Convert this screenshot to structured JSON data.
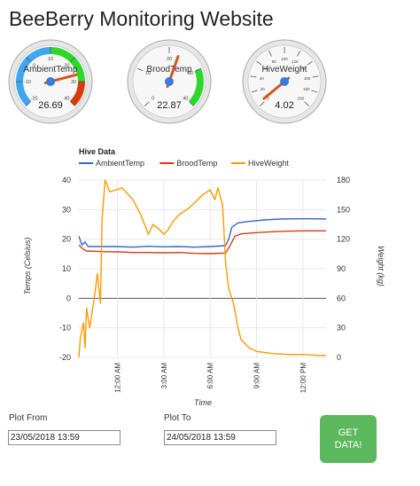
{
  "page": {
    "title": "BeeBerry Monitoring Website"
  },
  "gauges": [
    {
      "label": "AmbientTemp",
      "value": "26.69",
      "value_num": 26.69,
      "min": -20,
      "max": 40,
      "ticks": [
        "-20",
        "-10",
        "0",
        "10",
        "20",
        "30",
        "40"
      ],
      "bands": [
        {
          "from": -20,
          "to": 10,
          "color": "#3ea6f0"
        },
        {
          "from": 10,
          "to": 30,
          "color": "#2bd82b"
        },
        {
          "from": 30,
          "to": 40,
          "color": "#d73b0e"
        }
      ]
    },
    {
      "label": "BroodTemp",
      "value": "22.87",
      "value_num": 22.87,
      "min": 0,
      "max": 40,
      "ticks": [
        "0",
        "10",
        "20",
        "30",
        "40"
      ],
      "bands": [
        {
          "from": 30,
          "to": 40,
          "color": "#2bd82b"
        }
      ]
    },
    {
      "label": "HiveWeight",
      "value": "4.02",
      "value_num": 4.02,
      "min": 0,
      "max": 200,
      "ticks": [
        "0",
        "20",
        "40",
        "60",
        "80",
        "100",
        "120",
        "140",
        "160",
        "180",
        "200"
      ],
      "bands": []
    }
  ],
  "chart_data": {
    "type": "line",
    "title": "Hive Data",
    "xlabel": "Time",
    "ylabel": "Temps (Celsius)",
    "y2label": "Weight (kg)",
    "ylim": [
      -20,
      40
    ],
    "y2lim": [
      0,
      180
    ],
    "yticks": [
      "40",
      "30",
      "20",
      "10",
      "0",
      "-10",
      "-20"
    ],
    "y2ticks": [
      "180",
      "150",
      "120",
      "90",
      "60",
      "30",
      "0"
    ],
    "x_range_hours": [
      -2.5,
      13.5
    ],
    "xticks": [
      {
        "label": "12:00 AM",
        "h": 0
      },
      {
        "label": "3:00 AM",
        "h": 3
      },
      {
        "label": "6:00 AM",
        "h": 6
      },
      {
        "label": "9:00 AM",
        "h": 9
      },
      {
        "label": "12:00 PM",
        "h": 12
      }
    ],
    "legend_position": "top-left",
    "series": [
      {
        "name": "AmbientTemp",
        "color": "#3366cc",
        "axis": "left",
        "points": [
          [
            -2.5,
            21
          ],
          [
            -2.3,
            18
          ],
          [
            -2.1,
            19
          ],
          [
            -1.9,
            17.5
          ],
          [
            -1.5,
            17.5
          ],
          [
            -1,
            17.5
          ],
          [
            0,
            17.5
          ],
          [
            1,
            17.3
          ],
          [
            2,
            17.6
          ],
          [
            3,
            17.4
          ],
          [
            4,
            17.5
          ],
          [
            5,
            17.3
          ],
          [
            6,
            17.5
          ],
          [
            7,
            17.8
          ],
          [
            7.2,
            20
          ],
          [
            7.4,
            24
          ],
          [
            7.8,
            25.5
          ],
          [
            8.5,
            26
          ],
          [
            9.5,
            26.5
          ],
          [
            10.5,
            26.8
          ],
          [
            11.5,
            26.9
          ],
          [
            12.5,
            26.9
          ],
          [
            13.5,
            26.8
          ]
        ]
      },
      {
        "name": "BroodTemp",
        "color": "#dc3912",
        "axis": "left",
        "points": [
          [
            -2.5,
            18
          ],
          [
            -2.2,
            16.5
          ],
          [
            -2,
            16
          ],
          [
            -1,
            15.8
          ],
          [
            0,
            15.7
          ],
          [
            1,
            15.5
          ],
          [
            2,
            15.5
          ],
          [
            3,
            15.4
          ],
          [
            4,
            15.5
          ],
          [
            5,
            15.2
          ],
          [
            6,
            15.1
          ],
          [
            7,
            15.3
          ],
          [
            7.3,
            18
          ],
          [
            7.6,
            21
          ],
          [
            8,
            21.8
          ],
          [
            9,
            22.2
          ],
          [
            10,
            22.5
          ],
          [
            11,
            22.7
          ],
          [
            12,
            22.8
          ],
          [
            13.5,
            22.8
          ]
        ]
      },
      {
        "name": "HiveWeight",
        "color": "#ff9900",
        "axis": "right",
        "points": [
          [
            -2.5,
            0
          ],
          [
            -2.4,
            20
          ],
          [
            -2.2,
            35
          ],
          [
            -2.1,
            10
          ],
          [
            -2,
            50
          ],
          [
            -1.8,
            30
          ],
          [
            -1.5,
            60
          ],
          [
            -1.3,
            85
          ],
          [
            -1.1,
            55
          ],
          [
            -1,
            140
          ],
          [
            -0.8,
            180
          ],
          [
            -0.5,
            168
          ],
          [
            0.3,
            172
          ],
          [
            1,
            160
          ],
          [
            1.5,
            145
          ],
          [
            2,
            125
          ],
          [
            2.3,
            135
          ],
          [
            2.7,
            130
          ],
          [
            3,
            125
          ],
          [
            3.3,
            130
          ],
          [
            3.6,
            138
          ],
          [
            4,
            145
          ],
          [
            4.5,
            150
          ],
          [
            5,
            157
          ],
          [
            5.5,
            165
          ],
          [
            6,
            170
          ],
          [
            6.3,
            160
          ],
          [
            6.5,
            172
          ],
          [
            6.8,
            155
          ],
          [
            7,
            95
          ],
          [
            7.2,
            70
          ],
          [
            7.5,
            55
          ],
          [
            7.8,
            30
          ],
          [
            8,
            18
          ],
          [
            8.5,
            10
          ],
          [
            9,
            6
          ],
          [
            10,
            4
          ],
          [
            11,
            3
          ],
          [
            12,
            3
          ],
          [
            13,
            2
          ],
          [
            13.5,
            2
          ]
        ]
      }
    ]
  },
  "form": {
    "from_label": "Plot From",
    "from_value": "23/05/2018 13:59",
    "to_label": "Plot To",
    "to_value": "24/05/2018 13:59",
    "button_label": "GET DATA!"
  }
}
